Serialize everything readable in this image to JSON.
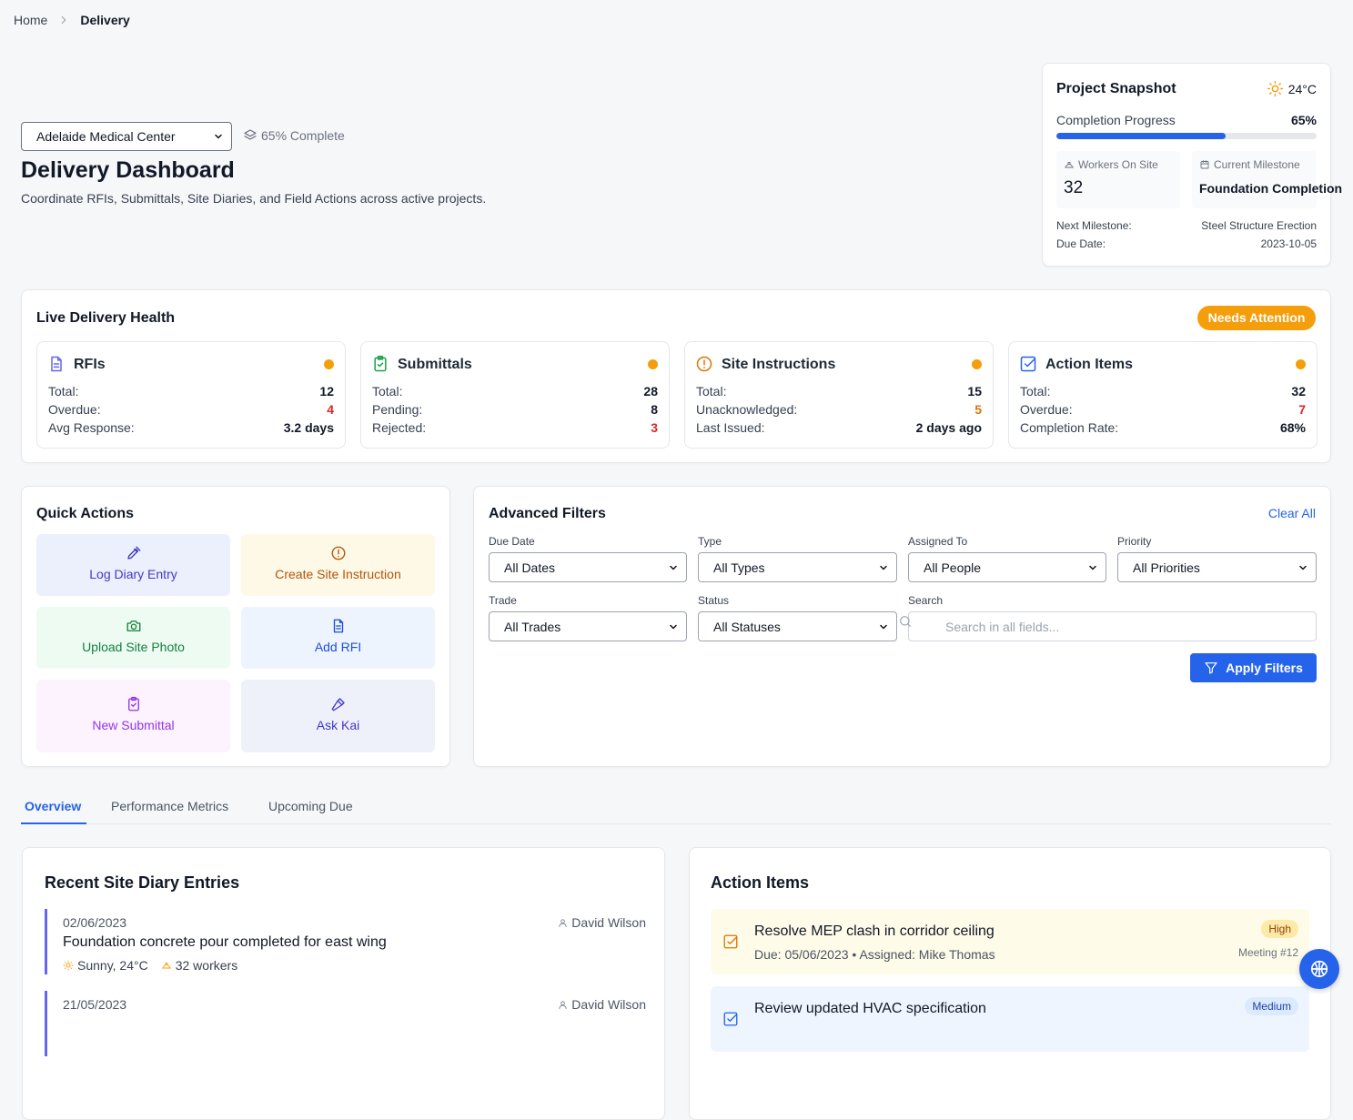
{
  "breadcrumb": [
    "Home",
    "Delivery"
  ],
  "project": {
    "selected": "Adelaide Medical Center",
    "completion": "65% Complete"
  },
  "header": {
    "title": "Delivery Dashboard",
    "subtitle": "Coordinate RFIs, Submittals, Site Diaries, and Field Actions across active projects."
  },
  "snapshot": {
    "title": "Project Snapshot",
    "temperature": "24°C",
    "progress_title": "Completion Progress",
    "progress_label": "65%",
    "progress": 65,
    "workers_label": "Workers On Site",
    "workers": 32,
    "milestone_label": "Current Milestone",
    "milestone": "Foundation Completion",
    "next_label": "Next Milestone:",
    "next": "Steel Structure Erection",
    "due_label": "Due Date:",
    "due": "2023-10-05"
  },
  "health": {
    "title": "Live Delivery Health",
    "status": "Needs Attention",
    "cards": [
      {
        "title": "RFIs",
        "rows": [
          {
            "label": "Total:",
            "value": 12
          },
          {
            "label": "Overdue:",
            "value": 4,
            "color": "#dc2626"
          },
          {
            "label": "Avg Response:",
            "value": "3.2 days"
          }
        ]
      },
      {
        "title": "Submittals",
        "rows": [
          {
            "label": "Total:",
            "value": 28
          },
          {
            "label": "Pending:",
            "value": 8
          },
          {
            "label": "Rejected:",
            "value": 3,
            "color": "#dc2626"
          }
        ]
      },
      {
        "title": "Site Instructions",
        "rows": [
          {
            "label": "Total:",
            "value": 15
          },
          {
            "label": "Unacknowledged:",
            "value": 5,
            "color": "#d97706"
          },
          {
            "label": "Last Issued:",
            "value": "2 days ago"
          }
        ]
      },
      {
        "title": "Action Items",
        "rows": [
          {
            "label": "Total:",
            "value": 32
          },
          {
            "label": "Overdue:",
            "value": 7,
            "color": "#dc2626"
          },
          {
            "label": "Completion Rate:",
            "value": "68%"
          }
        ]
      }
    ]
  },
  "quick_actions": {
    "title": "Quick Actions",
    "actions": [
      "Log Diary Entry",
      "Create Site Instruction",
      "Upload Site Photo",
      "Add RFI",
      "New Submittal",
      "Ask Kai"
    ]
  },
  "filters": {
    "title": "Advanced Filters",
    "clear": "Clear All",
    "fields": [
      {
        "label": "Due Date",
        "value": "All Dates"
      },
      {
        "label": "Type",
        "value": "All Types"
      },
      {
        "label": "Assigned To",
        "value": "All People"
      },
      {
        "label": "Priority",
        "value": "All Priorities"
      },
      {
        "label": "Trade",
        "value": "All Trades"
      },
      {
        "label": "Status",
        "value": "All Statuses"
      }
    ],
    "search_label": "Search",
    "search_placeholder": "Search in all fields...",
    "apply": "Apply Filters"
  },
  "tabs": [
    "Overview",
    "Performance Metrics",
    "Upcoming Due"
  ],
  "diary": {
    "title": "Recent Site Diary Entries",
    "entries": [
      {
        "date": "02/06/2023",
        "author": "David Wilson",
        "title": "Foundation concrete pour completed for east wing",
        "weather": "Sunny, 24°C",
        "workers": "32 workers"
      },
      {
        "date": "21/05/2023",
        "author": "David Wilson"
      }
    ]
  },
  "action_items": {
    "title": "Action Items",
    "items": [
      {
        "title": "Resolve MEP clash in corridor ceiling",
        "meta": "Due: 05/06/2023 • Assigned: Mike Thomas",
        "priority": "High",
        "source": "Meeting #12"
      },
      {
        "title": "Review updated HVAC specification",
        "priority": "Medium"
      }
    ]
  }
}
